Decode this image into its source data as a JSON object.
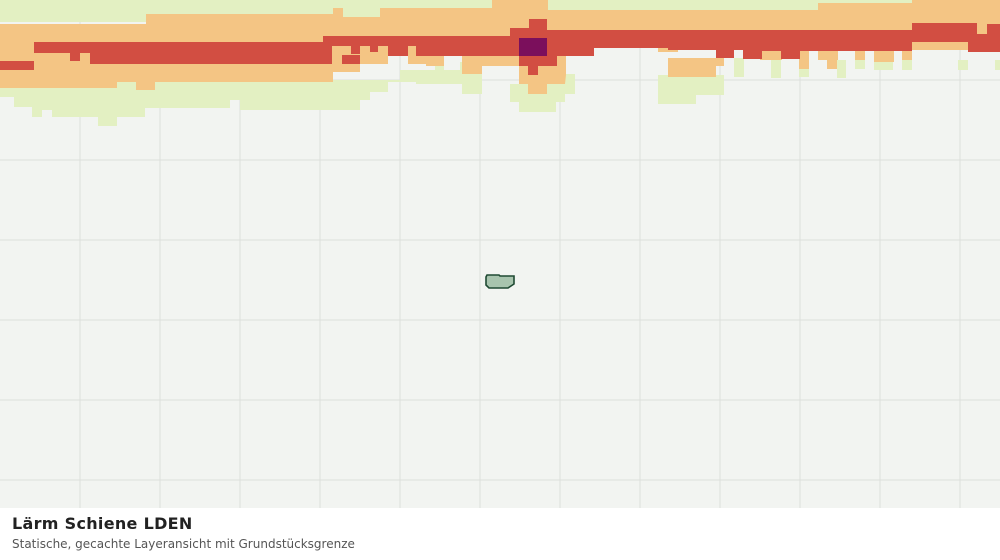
{
  "footer": {
    "title": "Lärm Schiene LDEN",
    "subtitle": "Statische, gecachte Layeransicht mit Grundstücksgrenze"
  }
}
